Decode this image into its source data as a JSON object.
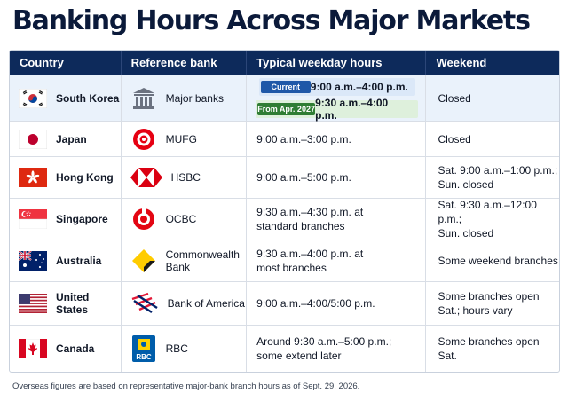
{
  "title": "Banking Hours Across Major Markets",
  "columns": [
    "Country",
    "Reference bank",
    "Typical weekday hours",
    "Weekend"
  ],
  "rows": [
    {
      "country": "South Korea",
      "bank": "Major banks",
      "hours_current_badge": "Current",
      "hours_current": "9:00 a.m.–4:00 p.m.",
      "hours_future_badge": "From Apr. 2027",
      "hours_future": "9:30 a.m.–4:00 p.m.",
      "weekend": "Closed"
    },
    {
      "country": "Japan",
      "bank": "MUFG",
      "hours": "9:00 a.m.–3:00 p.m.",
      "weekend": "Closed"
    },
    {
      "country": "Hong Kong",
      "bank": "HSBC",
      "hours": "9:00 a.m.–5:00 p.m.",
      "weekend_l1": "Sat. 9:00 a.m.–1:00 p.m.;",
      "weekend_l2": "Sun. closed"
    },
    {
      "country": "Singapore",
      "bank": "OCBC",
      "hours_l1": "9:30 a.m.–4:30 p.m. at",
      "hours_l2": "standard branches",
      "weekend_l1": "Sat. 9:30 a.m.–12:00 p.m.;",
      "weekend_l2": "Sun. closed"
    },
    {
      "country": "Australia",
      "bank_l1": "Commonwealth",
      "bank_l2": "Bank",
      "hours_l1": "9:30 a.m.–4:00 p.m. at",
      "hours_l2": "most branches",
      "weekend": "Some weekend branches"
    },
    {
      "country": "United States",
      "bank": "Bank of America",
      "hours": "9:00 a.m.–4:00/5:00 p.m.",
      "weekend_l1": "Some branches open",
      "weekend_l2": "Sat.; hours vary"
    },
    {
      "country": "Canada",
      "bank": "RBC",
      "logo_text": "RBC",
      "hours_l1": "Around 9:30 a.m.–5:00 p.m.;",
      "hours_l2": "some extend later",
      "weekend": "Some branches open Sat."
    }
  ],
  "footnote": "Overseas figures are based on representative major-bank branch hours as of Sept. 29, 2026.",
  "colors": {
    "title": "#0b1a3a",
    "header_bg": "#0d2a5b",
    "highlight_row": "#eaf2fb",
    "badge_current": "#1f58a8",
    "badge_future": "#2f7d34"
  }
}
